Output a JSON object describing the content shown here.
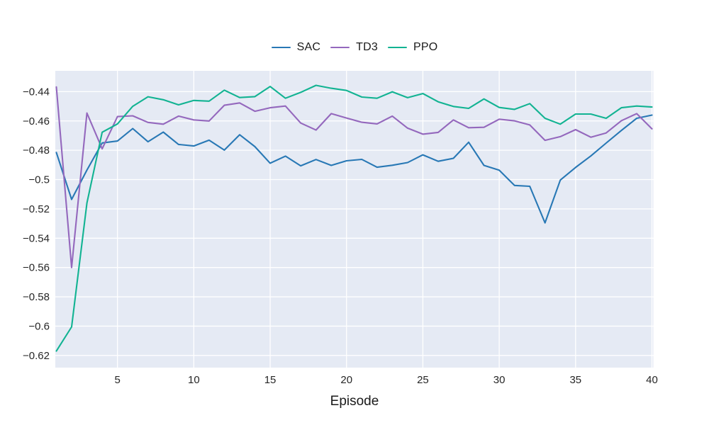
{
  "figure": {
    "background": "#ffffff",
    "plot_background": "#e5eaf4",
    "grid_color": "#ffffff",
    "tick_text_color": "#262626"
  },
  "legend": {
    "position": "top-center",
    "items": [
      {
        "label": "SAC",
        "color": "#2878b5"
      },
      {
        "label": "TD3",
        "color": "#9468bd"
      },
      {
        "label": "PPO",
        "color": "#12b392"
      }
    ]
  },
  "axes": {
    "xlabel": "Episode",
    "xticks": [
      {
        "value": 5,
        "label": "5"
      },
      {
        "value": 10,
        "label": "10"
      },
      {
        "value": 15,
        "label": "15"
      },
      {
        "value": 20,
        "label": "20"
      },
      {
        "value": 25,
        "label": "25"
      },
      {
        "value": 30,
        "label": "30"
      },
      {
        "value": 35,
        "label": "35"
      },
      {
        "value": 40,
        "label": "40"
      }
    ],
    "yticks": [
      {
        "value": -0.44,
        "label": "−0.44"
      },
      {
        "value": -0.46,
        "label": "−0.46"
      },
      {
        "value": -0.48,
        "label": "−0.48"
      },
      {
        "value": -0.5,
        "label": "−0.5"
      },
      {
        "value": -0.52,
        "label": "−0.52"
      },
      {
        "value": -0.54,
        "label": "−0.54"
      },
      {
        "value": -0.56,
        "label": "−0.56"
      },
      {
        "value": -0.58,
        "label": "−0.58"
      },
      {
        "value": -0.6,
        "label": "−0.6"
      },
      {
        "value": -0.62,
        "label": "−0.62"
      }
    ]
  },
  "chart_data": {
    "type": "line",
    "title": "",
    "xlabel": "Episode",
    "ylabel": "",
    "grid": true,
    "legend_position": "top-center",
    "xlim": [
      1,
      40
    ],
    "ylim": [
      -0.6283,
      -0.4258
    ],
    "x": [
      1,
      2,
      3,
      4,
      5,
      6,
      7,
      8,
      9,
      10,
      11,
      12,
      13,
      14,
      15,
      16,
      17,
      18,
      19,
      20,
      21,
      22,
      23,
      24,
      25,
      26,
      27,
      28,
      29,
      30,
      31,
      32,
      33,
      34,
      35,
      36,
      37,
      38,
      39,
      40
    ],
    "series": [
      {
        "name": "SAC",
        "color": "#2878b5",
        "values": [
          -0.4815,
          -0.5135,
          -0.4935,
          -0.475,
          -0.4737,
          -0.4652,
          -0.4742,
          -0.4676,
          -0.476,
          -0.4771,
          -0.4731,
          -0.4799,
          -0.4694,
          -0.4775,
          -0.4888,
          -0.484,
          -0.4906,
          -0.4863,
          -0.4903,
          -0.4872,
          -0.4862,
          -0.4916,
          -0.4902,
          -0.4884,
          -0.4831,
          -0.4875,
          -0.4855,
          -0.4745,
          -0.4903,
          -0.4936,
          -0.504,
          -0.5046,
          -0.5295,
          -0.5003,
          -0.4917,
          -0.4839,
          -0.4751,
          -0.4665,
          -0.4582,
          -0.456
        ]
      },
      {
        "name": "TD3",
        "color": "#9468bd",
        "values": [
          -0.4368,
          -0.56,
          -0.4546,
          -0.479,
          -0.457,
          -0.4565,
          -0.461,
          -0.4622,
          -0.4567,
          -0.4593,
          -0.46,
          -0.4493,
          -0.4477,
          -0.4534,
          -0.451,
          -0.4498,
          -0.4614,
          -0.4662,
          -0.455,
          -0.458,
          -0.4609,
          -0.462,
          -0.4567,
          -0.4649,
          -0.469,
          -0.4678,
          -0.4593,
          -0.4646,
          -0.4643,
          -0.4588,
          -0.4599,
          -0.4627,
          -0.4732,
          -0.4707,
          -0.4659,
          -0.4711,
          -0.4682,
          -0.4598,
          -0.455,
          -0.4654
        ]
      },
      {
        "name": "PPO",
        "color": "#12b392",
        "values": [
          -0.617,
          -0.6005,
          -0.516,
          -0.4677,
          -0.462,
          -0.45,
          -0.4435,
          -0.4455,
          -0.449,
          -0.446,
          -0.4465,
          -0.439,
          -0.444,
          -0.4434,
          -0.4365,
          -0.4445,
          -0.4405,
          -0.4357,
          -0.4377,
          -0.4392,
          -0.4437,
          -0.4445,
          -0.4401,
          -0.4441,
          -0.4413,
          -0.4469,
          -0.4501,
          -0.4514,
          -0.445,
          -0.4508,
          -0.4521,
          -0.4482,
          -0.4582,
          -0.4622,
          -0.4553,
          -0.4553,
          -0.4582,
          -0.451,
          -0.4498,
          -0.4505
        ]
      }
    ]
  }
}
